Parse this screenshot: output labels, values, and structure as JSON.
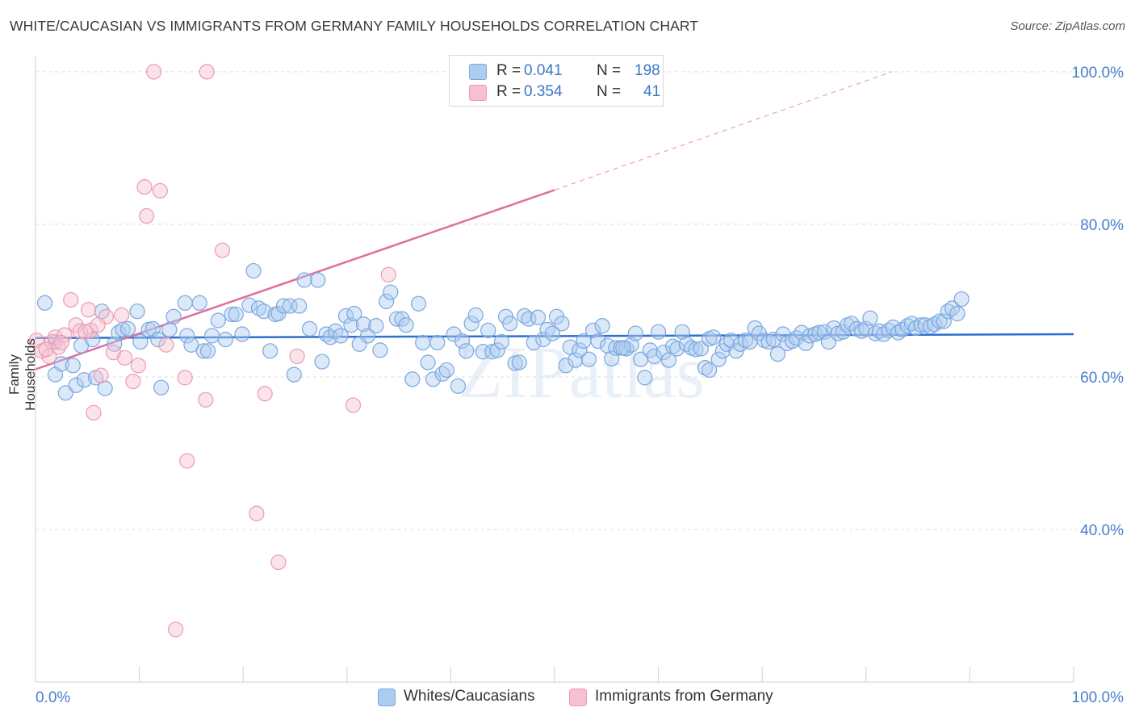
{
  "title": "WHITE/CAUCASIAN VS IMMIGRANTS FROM GERMANY FAMILY HOUSEHOLDS CORRELATION CHART",
  "source": "Source: ZipAtlas.com",
  "watermark": "ZIPatlas",
  "legend": {
    "r_label": "R =",
    "n_label": "N =",
    "rows": [
      {
        "name": "Whites/Caucasians",
        "r": "0.041",
        "n": "198",
        "fill": "#aecbf0",
        "stroke": "#7aa7e0"
      },
      {
        "name": "Immigrants from Germany",
        "r": "0.354",
        "n": "41",
        "fill": "#f6c0d0",
        "stroke": "#ec9ab3"
      }
    ]
  },
  "colors": {
    "blue_line": "#2f6fce",
    "pink_line": "#e0709a",
    "axis_text": "#4a7fd0",
    "grid": "#dcdcdc"
  },
  "chart_data": {
    "type": "scatter",
    "title": "WHITE/CAUCASIAN VS IMMIGRANTS FROM GERMANY FAMILY HOUSEHOLDS CORRELATION CHART",
    "xlabel": "",
    "ylabel": "Family Households",
    "xlim": [
      0,
      100
    ],
    "ylim": [
      20,
      102
    ],
    "x_tick_labels": [
      "0.0%",
      "100.0%"
    ],
    "y_ticks": [
      40,
      60,
      80,
      100
    ],
    "y_tick_labels": [
      "40.0%",
      "60.0%",
      "80.0%",
      "100.0%"
    ],
    "grid": true,
    "legend_position": "top-center",
    "series": [
      {
        "name": "Whites/Caucasians",
        "color": "#7aa7e0",
        "trend": {
          "x": [
            0,
            100
          ],
          "y": [
            65.1,
            65.6
          ]
        },
        "points": [
          [
            0.9,
            69.7
          ],
          [
            1.9,
            64.6
          ],
          [
            1.9,
            60.3
          ],
          [
            2.5,
            61.7
          ],
          [
            2.9,
            57.9
          ],
          [
            3.6,
            61.5
          ],
          [
            3.9,
            58.9
          ],
          [
            4.4,
            64.1
          ],
          [
            4.7,
            59.6
          ],
          [
            5.5,
            64.9
          ],
          [
            5.8,
            59.9
          ],
          [
            6.4,
            68.6
          ],
          [
            6.7,
            58.5
          ],
          [
            7.6,
            64.3
          ],
          [
            8.0,
            65.8
          ],
          [
            8.4,
            66.2
          ],
          [
            8.9,
            66.3
          ],
          [
            9.8,
            68.6
          ],
          [
            10.1,
            64.6
          ],
          [
            10.9,
            66.2
          ],
          [
            11.3,
            66.3
          ],
          [
            11.8,
            64.9
          ],
          [
            12.1,
            58.6
          ],
          [
            12.9,
            66.2
          ],
          [
            13.3,
            67.9
          ],
          [
            14.4,
            69.7
          ],
          [
            14.6,
            65.4
          ],
          [
            15.0,
            64.2
          ],
          [
            15.8,
            69.7
          ],
          [
            16.2,
            63.4
          ],
          [
            16.6,
            63.4
          ],
          [
            17.0,
            65.4
          ],
          [
            17.6,
            67.4
          ],
          [
            18.3,
            64.9
          ],
          [
            18.9,
            68.2
          ],
          [
            19.3,
            68.2
          ],
          [
            19.9,
            65.6
          ],
          [
            20.6,
            69.4
          ],
          [
            21.0,
            73.9
          ],
          [
            21.5,
            69.0
          ],
          [
            22.0,
            68.6
          ],
          [
            22.6,
            63.4
          ],
          [
            23.1,
            68.2
          ],
          [
            23.4,
            68.3
          ],
          [
            23.9,
            69.3
          ],
          [
            24.5,
            69.3
          ],
          [
            24.9,
            60.3
          ],
          [
            25.4,
            69.3
          ],
          [
            25.9,
            72.7
          ],
          [
            26.4,
            66.3
          ],
          [
            27.2,
            72.7
          ],
          [
            27.6,
            62.0
          ],
          [
            28.0,
            65.6
          ],
          [
            28.4,
            65.2
          ],
          [
            28.9,
            66.0
          ],
          [
            29.4,
            65.4
          ],
          [
            29.9,
            68.0
          ],
          [
            30.4,
            66.8
          ],
          [
            30.7,
            68.3
          ],
          [
            31.2,
            64.3
          ],
          [
            31.6,
            66.9
          ],
          [
            32.0,
            65.4
          ],
          [
            32.8,
            66.7
          ],
          [
            33.2,
            63.5
          ],
          [
            33.8,
            69.9
          ],
          [
            34.2,
            71.1
          ],
          [
            34.8,
            67.6
          ],
          [
            35.3,
            67.6
          ],
          [
            35.7,
            66.8
          ],
          [
            36.3,
            59.7
          ],
          [
            36.9,
            69.6
          ],
          [
            37.3,
            64.5
          ],
          [
            37.8,
            61.9
          ],
          [
            38.3,
            59.7
          ],
          [
            38.7,
            64.5
          ],
          [
            39.2,
            60.4
          ],
          [
            39.6,
            60.9
          ],
          [
            40.3,
            65.6
          ],
          [
            40.7,
            58.8
          ],
          [
            41.1,
            64.7
          ],
          [
            41.5,
            63.4
          ],
          [
            42.0,
            67.0
          ],
          [
            42.4,
            68.1
          ],
          [
            43.1,
            63.3
          ],
          [
            43.6,
            66.1
          ],
          [
            44.0,
            63.3
          ],
          [
            44.5,
            63.5
          ],
          [
            44.9,
            64.6
          ],
          [
            45.3,
            67.9
          ],
          [
            45.7,
            67.0
          ],
          [
            46.2,
            61.8
          ],
          [
            46.6,
            61.9
          ],
          [
            47.1,
            68.0
          ],
          [
            47.5,
            67.6
          ],
          [
            48.0,
            64.5
          ],
          [
            48.4,
            67.8
          ],
          [
            48.9,
            64.9
          ],
          [
            49.3,
            66.2
          ],
          [
            49.8,
            65.7
          ],
          [
            50.2,
            67.9
          ],
          [
            50.7,
            67.0
          ],
          [
            51.1,
            61.5
          ],
          [
            51.5,
            63.9
          ],
          [
            52.0,
            62.2
          ],
          [
            52.4,
            63.5
          ],
          [
            52.8,
            64.7
          ],
          [
            53.3,
            62.3
          ],
          [
            53.7,
            66.1
          ],
          [
            54.2,
            64.7
          ],
          [
            54.6,
            66.7
          ],
          [
            55.1,
            64.1
          ],
          [
            55.5,
            62.4
          ],
          [
            55.9,
            63.8
          ],
          [
            56.4,
            63.8
          ],
          [
            56.9,
            63.7
          ],
          [
            57.4,
            64.2
          ],
          [
            57.8,
            65.7
          ],
          [
            58.3,
            62.3
          ],
          [
            58.7,
            59.9
          ],
          [
            59.2,
            63.5
          ],
          [
            59.6,
            62.7
          ],
          [
            60.0,
            65.9
          ],
          [
            60.5,
            63.2
          ],
          [
            61.0,
            62.2
          ],
          [
            61.4,
            64.0
          ],
          [
            61.8,
            63.7
          ],
          [
            62.3,
            65.9
          ],
          [
            62.7,
            64.3
          ],
          [
            63.2,
            63.8
          ],
          [
            63.6,
            63.6
          ],
          [
            64.1,
            63.7
          ],
          [
            64.5,
            61.2
          ],
          [
            64.9,
            65.0
          ],
          [
            65.3,
            65.2
          ],
          [
            65.8,
            62.3
          ],
          [
            66.2,
            63.4
          ],
          [
            66.6,
            64.3
          ],
          [
            67.0,
            64.8
          ],
          [
            67.5,
            63.4
          ],
          [
            67.9,
            64.3
          ],
          [
            68.4,
            64.8
          ],
          [
            68.8,
            64.6
          ],
          [
            69.3,
            66.4
          ],
          [
            69.7,
            65.7
          ],
          [
            70.2,
            64.8
          ],
          [
            70.6,
            64.6
          ],
          [
            71.1,
            64.9
          ],
          [
            71.5,
            63.0
          ],
          [
            72.0,
            65.6
          ],
          [
            72.4,
            64.4
          ],
          [
            72.9,
            64.7
          ],
          [
            73.3,
            65.1
          ],
          [
            73.8,
            65.8
          ],
          [
            74.2,
            64.4
          ],
          [
            74.6,
            65.4
          ],
          [
            75.1,
            65.6
          ],
          [
            75.5,
            65.8
          ],
          [
            76.0,
            65.9
          ],
          [
            76.4,
            64.6
          ],
          [
            76.9,
            66.4
          ],
          [
            77.3,
            65.7
          ],
          [
            77.8,
            65.9
          ],
          [
            78.2,
            66.8
          ],
          [
            78.6,
            67.0
          ],
          [
            79.1,
            66.3
          ],
          [
            79.6,
            66.0
          ],
          [
            80.0,
            66.3
          ],
          [
            80.4,
            67.7
          ],
          [
            80.9,
            65.7
          ],
          [
            81.3,
            66.0
          ],
          [
            81.7,
            65.6
          ],
          [
            82.2,
            66.1
          ],
          [
            82.6,
            66.5
          ],
          [
            83.1,
            65.8
          ],
          [
            83.5,
            66.2
          ],
          [
            84.0,
            66.7
          ],
          [
            84.4,
            67.0
          ],
          [
            84.8,
            66.4
          ],
          [
            85.3,
            66.8
          ],
          [
            85.7,
            66.8
          ],
          [
            86.2,
            66.6
          ],
          [
            86.6,
            66.9
          ],
          [
            87.1,
            67.3
          ],
          [
            87.5,
            67.3
          ],
          [
            87.9,
            68.6
          ],
          [
            88.3,
            69.0
          ],
          [
            88.8,
            68.3
          ],
          [
            89.2,
            70.2
          ],
          [
            56.6,
            63.8
          ],
          [
            64.9,
            60.9
          ]
        ]
      },
      {
        "name": "Immigrants from Germany",
        "color": "#ec9ab3",
        "trend": {
          "x": [
            0,
            50
          ],
          "y": [
            61.0,
            84.5
          ]
        },
        "trend_dashed": {
          "x": [
            50,
            82.5
          ],
          "y": [
            84.5,
            100
          ]
        },
        "points": [
          [
            0.1,
            64.8
          ],
          [
            0.6,
            63.4
          ],
          [
            1.3,
            62.7
          ],
          [
            1.6,
            64.6
          ],
          [
            1.9,
            65.2
          ],
          [
            2.2,
            63.9
          ],
          [
            2.8,
            65.5
          ],
          [
            3.4,
            70.1
          ],
          [
            3.9,
            66.8
          ],
          [
            4.3,
            66.0
          ],
          [
            5.1,
            68.8
          ],
          [
            5.3,
            66.1
          ],
          [
            5.6,
            55.3
          ],
          [
            6.3,
            60.2
          ],
          [
            6.8,
            67.9
          ],
          [
            7.5,
            63.2
          ],
          [
            8.3,
            68.1
          ],
          [
            8.6,
            62.5
          ],
          [
            9.4,
            59.4
          ],
          [
            9.9,
            61.5
          ],
          [
            10.5,
            84.9
          ],
          [
            10.7,
            81.1
          ],
          [
            11.4,
            100.0
          ],
          [
            12.0,
            84.4
          ],
          [
            12.6,
            64.2
          ],
          [
            14.4,
            59.9
          ],
          [
            14.6,
            49.0
          ],
          [
            13.5,
            26.9
          ],
          [
            16.5,
            100.0
          ],
          [
            16.4,
            57.0
          ],
          [
            18.0,
            76.6
          ],
          [
            21.3,
            42.1
          ],
          [
            22.1,
            57.8
          ],
          [
            23.4,
            35.7
          ],
          [
            25.2,
            62.7
          ],
          [
            30.6,
            56.3
          ],
          [
            34.0,
            73.4
          ],
          [
            6.0,
            66.8
          ],
          [
            4.8,
            65.9
          ],
          [
            2.5,
            64.5
          ],
          [
            1.0,
            63.6
          ]
        ]
      }
    ]
  }
}
